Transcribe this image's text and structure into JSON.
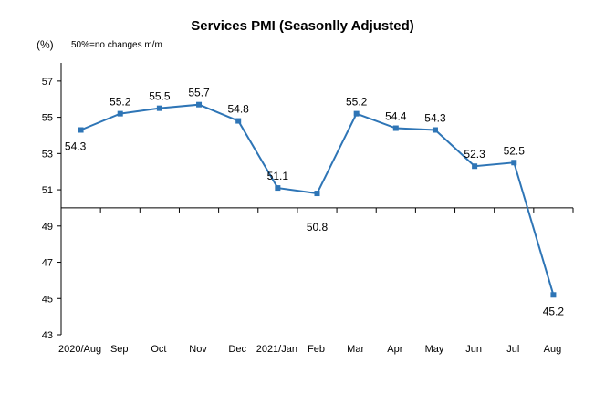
{
  "chart_data": {
    "type": "line",
    "title": "Services PMI (Seasonlly Adjusted)",
    "unit_label": "(%)",
    "note": "50%=no changes  m/m",
    "categories": [
      "2020/Aug",
      "Sep",
      "Oct",
      "Nov",
      "Dec",
      "2021/Jan",
      "Feb",
      "Mar",
      "Apr",
      "May",
      "Jun",
      "Jul",
      "Aug"
    ],
    "series": [
      {
        "values": [
          54.3,
          55.2,
          55.5,
          55.7,
          54.8,
          51.1,
          50.8,
          55.2,
          54.4,
          54.3,
          52.3,
          52.5,
          45.2
        ]
      }
    ],
    "data_labels": [
      "54.3",
      "55.2",
      "55.5",
      "55.7",
      "54.8",
      "51.1",
      "50.8",
      "55.2",
      "54.4",
      "54.3",
      "52.3",
      "52.5",
      "45.2"
    ],
    "y_ticks": [
      "43",
      "45",
      "47",
      "49",
      "51",
      "53",
      "55",
      "57"
    ],
    "ylim": [
      43,
      58
    ],
    "x_axis_crosses_at": 50,
    "grid": false,
    "colors": {
      "line": "#2E75B6",
      "axis": "#000000"
    }
  }
}
